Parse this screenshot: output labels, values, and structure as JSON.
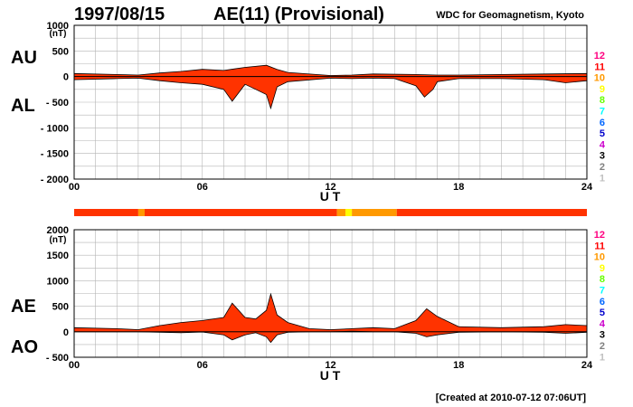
{
  "header": {
    "date": "1997/08/15",
    "title": "AE(11) (Provisional)",
    "source": "WDC for Geomagnetism, Kyoto"
  },
  "footer": {
    "created": "[Created at 2010-07-12 07:06UT]"
  },
  "colors": {
    "above": "#ff3300",
    "outline": "#000000",
    "grid": "#b4b4b4",
    "low_activity": "#ff9900",
    "very_low": "#ffcc00"
  },
  "legend": {
    "values": [
      "12",
      "11",
      "10",
      "9",
      "8",
      "7",
      "6",
      "5",
      "4",
      "3",
      "2",
      "1"
    ],
    "colors": [
      "#ff0080",
      "#ff0000",
      "#ff9900",
      "#ffff00",
      "#66ff00",
      "#00ffff",
      "#0066ff",
      "#0000cc",
      "#cc00cc",
      "#000000",
      "#808080",
      "#c0c0c0"
    ]
  },
  "chart_data": [
    {
      "type": "area",
      "panel": "top",
      "series": [
        {
          "name": "AU",
          "x": [
            0,
            2,
            3,
            4,
            5,
            6,
            7,
            7.5,
            8,
            9,
            9.5,
            10,
            12,
            13,
            14,
            16,
            17,
            18,
            20,
            22,
            24
          ],
          "values": [
            60,
            40,
            30,
            70,
            100,
            140,
            120,
            150,
            180,
            220,
            140,
            80,
            20,
            30,
            50,
            40,
            30,
            30,
            40,
            50,
            60
          ]
        },
        {
          "name": "AL",
          "x": [
            0,
            2,
            3,
            4,
            5,
            6,
            7,
            7.4,
            8,
            8.5,
            9,
            9.2,
            9.5,
            10,
            12,
            13,
            14,
            15,
            16,
            16.4,
            16.8,
            17,
            18,
            20,
            22,
            23,
            24
          ],
          "values": [
            -60,
            -40,
            -30,
            -80,
            -120,
            -150,
            -250,
            -480,
            -150,
            -250,
            -350,
            -620,
            -200,
            -100,
            -30,
            -40,
            -30,
            -40,
            -180,
            -400,
            -250,
            -100,
            -40,
            -40,
            -60,
            -120,
            -80
          ]
        }
      ],
      "xlabel": "U T",
      "ylabel": "(nT)",
      "x_ticks": [
        "00",
        "06",
        "12",
        "18",
        "24"
      ],
      "y_ticks": [
        "1000",
        "500",
        "0",
        "- 500",
        "- 1000",
        "- 1500",
        "- 2000"
      ],
      "ylim": [
        -2000,
        1000
      ],
      "xlim": [
        0,
        24
      ],
      "grid": true
    },
    {
      "type": "area",
      "panel": "bottom",
      "series": [
        {
          "name": "AE",
          "x": [
            0,
            2,
            3,
            4,
            5,
            6,
            7,
            7.4,
            8,
            8.5,
            9,
            9.2,
            9.5,
            10,
            11,
            12,
            13,
            14,
            15,
            16,
            16.5,
            17,
            18,
            20,
            22,
            23,
            24
          ],
          "values": [
            80,
            60,
            40,
            120,
            180,
            220,
            280,
            560,
            280,
            250,
            420,
            740,
            330,
            180,
            60,
            40,
            60,
            80,
            60,
            220,
            450,
            300,
            100,
            80,
            100,
            140,
            120
          ]
        },
        {
          "name": "AO",
          "x": [
            0,
            2,
            3,
            4,
            5,
            6,
            7,
            7.4,
            8,
            8.5,
            9,
            9.2,
            9.5,
            10,
            11,
            12,
            13,
            14,
            15,
            16,
            16.5,
            17,
            18,
            20,
            22,
            23,
            24
          ],
          "values": [
            0,
            0,
            0,
            -10,
            -20,
            -5,
            -60,
            -160,
            -60,
            -20,
            -100,
            -210,
            -60,
            -10,
            0,
            0,
            10,
            0,
            0,
            -30,
            -100,
            -60,
            -10,
            0,
            -10,
            -30,
            -10
          ]
        }
      ],
      "xlabel": "U T",
      "ylabel": "(nT)",
      "x_ticks": [
        "00",
        "06",
        "12",
        "18",
        "24"
      ],
      "y_ticks": [
        "2000",
        "1500",
        "1000",
        "500",
        "0",
        "- 500"
      ],
      "ylim": [
        -500,
        2000
      ],
      "xlim": [
        0,
        24
      ],
      "grid": true
    }
  ],
  "activity_bar": {
    "segments": [
      {
        "from": 0,
        "to": 3.0,
        "color": "#ff3300"
      },
      {
        "from": 3.0,
        "to": 3.3,
        "color": "#ff9900"
      },
      {
        "from": 3.3,
        "to": 12.3,
        "color": "#ff3300"
      },
      {
        "from": 12.3,
        "to": 12.7,
        "color": "#ff9900"
      },
      {
        "from": 12.7,
        "to": 13.0,
        "color": "#ffff00"
      },
      {
        "from": 13.0,
        "to": 15.1,
        "color": "#ff9900"
      },
      {
        "from": 15.1,
        "to": 24,
        "color": "#ff3300"
      }
    ]
  }
}
